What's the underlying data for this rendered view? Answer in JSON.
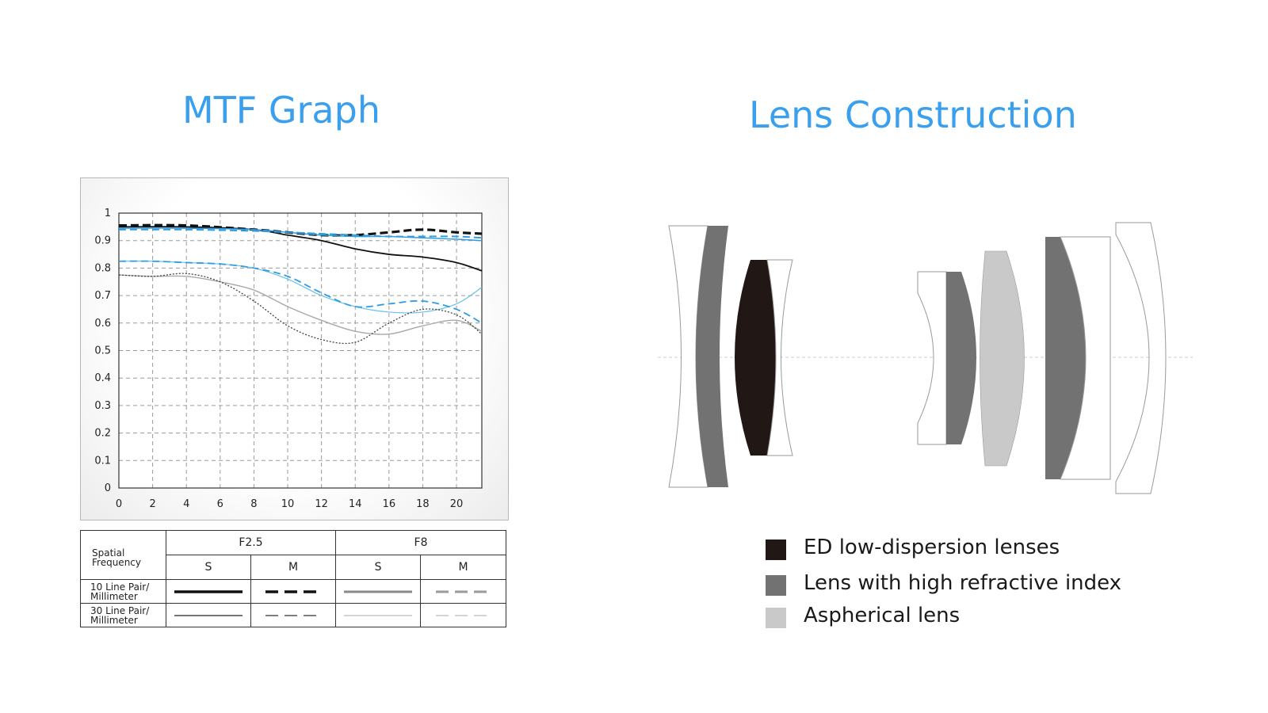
{
  "titles": {
    "mtf": "MTF Graph",
    "lens": "Lens Construction"
  },
  "chart_data": {
    "type": "line",
    "xlim": [
      0,
      21.5
    ],
    "ylim": [
      0,
      1
    ],
    "x_ticks": [
      0,
      2,
      4,
      6,
      8,
      10,
      12,
      14,
      16,
      18,
      20
    ],
    "x_tick_labels": [
      "0",
      "2",
      "4",
      "6",
      "8",
      "10",
      "12",
      "14",
      "16",
      "18",
      "20"
    ],
    "y_ticks": [
      0,
      0.1,
      0.2,
      0.3,
      0.4,
      0.5,
      0.6,
      0.7,
      0.8,
      0.9,
      1
    ],
    "y_tick_labels": [
      "0",
      "0.1",
      "0.2",
      "0.3",
      "0.4",
      "0.5",
      "0.6",
      "0.7",
      "0.8",
      "0.9",
      "1"
    ],
    "grid": true,
    "legend_placement": "table below chart",
    "series": [
      {
        "x": [
          0,
          4,
          8,
          10,
          12,
          14,
          16,
          18,
          20,
          21.5
        ],
        "y": [
          0.95,
          0.95,
          0.94,
          0.92,
          0.9,
          0.87,
          0.85,
          0.84,
          0.82,
          0.79
        ],
        "color": "#111111",
        "style": "solid",
        "width": 1.8
      },
      {
        "x": [
          0,
          4,
          8,
          10,
          12,
          14,
          16,
          18,
          20,
          21.5
        ],
        "y": [
          0.955,
          0.955,
          0.94,
          0.93,
          0.92,
          0.92,
          0.93,
          0.94,
          0.93,
          0.925
        ],
        "color": "#111111",
        "style": "dashed",
        "width": 3.2
      },
      {
        "x": [
          0,
          4,
          8,
          10,
          12,
          14,
          16,
          18,
          20,
          21.5
        ],
        "y": [
          0.945,
          0.945,
          0.94,
          0.93,
          0.92,
          0.915,
          0.915,
          0.91,
          0.905,
          0.9
        ],
        "color": "#2f9de0",
        "style": "solid",
        "width": 1.5
      },
      {
        "x": [
          0,
          4,
          8,
          10,
          12,
          14,
          16,
          18,
          20,
          21.5
        ],
        "y": [
          0.94,
          0.94,
          0.935,
          0.93,
          0.925,
          0.92,
          0.915,
          0.915,
          0.915,
          0.91
        ],
        "color": "#2f9de0",
        "style": "dashed",
        "width": 2
      },
      {
        "x": [
          0,
          2,
          4,
          6,
          8,
          10,
          12,
          14,
          16,
          18,
          20,
          21.5
        ],
        "y": [
          0.825,
          0.825,
          0.82,
          0.815,
          0.8,
          0.76,
          0.7,
          0.66,
          0.64,
          0.64,
          0.67,
          0.73
        ],
        "color": "#6cc0ee",
        "style": "solid",
        "width": 1.2
      },
      {
        "x": [
          0,
          2,
          4,
          6,
          8,
          10,
          12,
          14,
          16,
          18,
          20,
          21.5
        ],
        "y": [
          0.825,
          0.825,
          0.82,
          0.815,
          0.8,
          0.77,
          0.71,
          0.66,
          0.67,
          0.68,
          0.65,
          0.6
        ],
        "color": "#2f9de0",
        "style": "dashed",
        "width": 1.8
      },
      {
        "x": [
          0,
          2,
          4,
          6,
          8,
          10,
          12,
          14,
          16,
          18,
          20,
          21.5
        ],
        "y": [
          0.775,
          0.77,
          0.77,
          0.75,
          0.72,
          0.66,
          0.61,
          0.57,
          0.56,
          0.59,
          0.61,
          0.57
        ],
        "color": "#a8a8a8",
        "style": "solid",
        "width": 1.4
      },
      {
        "x": [
          0,
          2,
          4,
          6,
          8,
          10,
          12,
          14,
          16,
          18,
          20,
          21.5
        ],
        "y": [
          0.775,
          0.77,
          0.78,
          0.75,
          0.68,
          0.59,
          0.54,
          0.53,
          0.6,
          0.65,
          0.63,
          0.56
        ],
        "color": "#444444",
        "style": "dotted",
        "width": 1.3
      }
    ]
  },
  "legend_table": {
    "col_group_1": "F2.5",
    "col_group_2": "F8",
    "sub_s1": "S",
    "sub_m1": "M",
    "sub_s2": "S",
    "sub_m2": "M",
    "header_label_1": "Spatial",
    "header_label_2": "Frequency",
    "row1_label_1": "10 Line Pair/",
    "row1_label_2": "Millimeter",
    "row2_label_1": "30 Line Pair/",
    "row2_label_2": "Millimeter"
  },
  "lens_legend": [
    {
      "label": "ED low-dispersion lenses",
      "color": "#211714"
    },
    {
      "label": "Lens with high refractive index",
      "color": "#727272"
    },
    {
      "label": "Aspherical lens",
      "color": "#c9c9c9"
    }
  ],
  "colors": {
    "accent": "#3aa0ee",
    "ed": "#211714",
    "high_index": "#727272",
    "aspherical": "#c9c9c9"
  }
}
